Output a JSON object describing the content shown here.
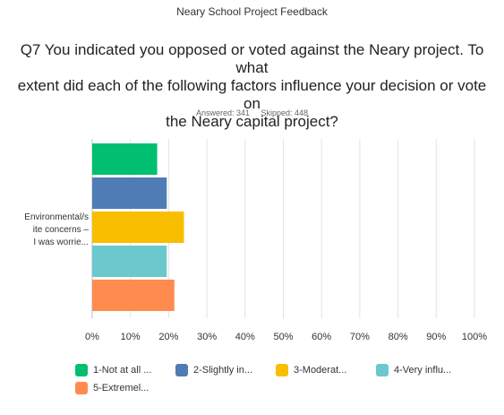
{
  "survey_title": "Neary School Project Feedback",
  "question": {
    "line1": "Q7 You indicated you opposed or voted against the Neary project. To what",
    "line2": "extent did each of the following factors influence your decision or vote on",
    "line3": "the Neary capital project?"
  },
  "stats": {
    "answered": "Answered: 341",
    "skipped": "Skipped: 448"
  },
  "chart_data": {
    "type": "bar",
    "orientation": "horizontal",
    "categories": [
      "Environmental/site concerns - I was worrie..."
    ],
    "category_label_lines": [
      "Environmental/s",
      "ite concerns –",
      "I was worrie..."
    ],
    "series": [
      {
        "name": "1-Not at all ...",
        "color": "#00BF6F",
        "values": [
          17
        ]
      },
      {
        "name": "2-Slightly in...",
        "color": "#507CB6",
        "values": [
          19.5
        ]
      },
      {
        "name": "3-Moderat...",
        "color": "#F9BE00",
        "values": [
          24
        ]
      },
      {
        "name": "4-Very influ...",
        "color": "#6BC8CD",
        "values": [
          19.5
        ]
      },
      {
        "name": "5-Extremel...",
        "color": "#FF8B4F",
        "values": [
          21.5
        ]
      }
    ],
    "xlim": [
      0,
      100
    ],
    "x_ticks": [
      "0%",
      "10%",
      "20%",
      "30%",
      "40%",
      "50%",
      "60%",
      "70%",
      "80%",
      "90%",
      "100%"
    ],
    "grid": true,
    "legend_position": "bottom"
  }
}
